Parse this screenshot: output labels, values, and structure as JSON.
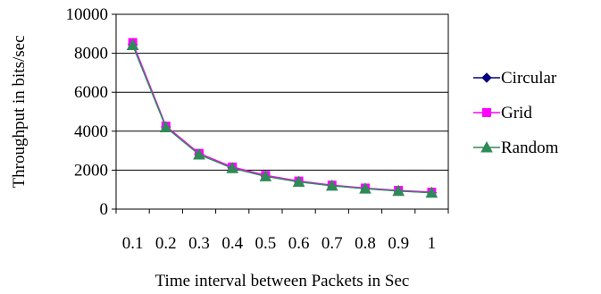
{
  "chart_data": {
    "type": "line",
    "title": "",
    "xlabel": "Time interval between Packets in Sec",
    "ylabel": "Throughput in bits/sec",
    "categories": [
      "0.1",
      "0.2",
      "0.3",
      "0.4",
      "0.5",
      "0.6",
      "0.7",
      "0.8",
      "0.9",
      "1"
    ],
    "ylim": [
      0,
      10000
    ],
    "yticks": [
      "0",
      "2000",
      "4000",
      "6000",
      "8000",
      "10000"
    ],
    "grid": true,
    "legend_position": "right",
    "series": [
      {
        "name": "Circular",
        "marker": "diamond",
        "color": "#000080",
        "values": [
          8450,
          4220,
          2820,
          2120,
          1700,
          1410,
          1210,
          1060,
          940,
          850
        ]
      },
      {
        "name": "Grid",
        "marker": "square",
        "color": "#ff00ff",
        "values": [
          8550,
          4260,
          2860,
          2160,
          1730,
          1440,
          1230,
          1080,
          960,
          870
        ]
      },
      {
        "name": "Random",
        "marker": "triangle",
        "color": "#2e8b57",
        "values": [
          8420,
          4200,
          2800,
          2100,
          1680,
          1400,
          1200,
          1050,
          930,
          840
        ]
      }
    ]
  }
}
